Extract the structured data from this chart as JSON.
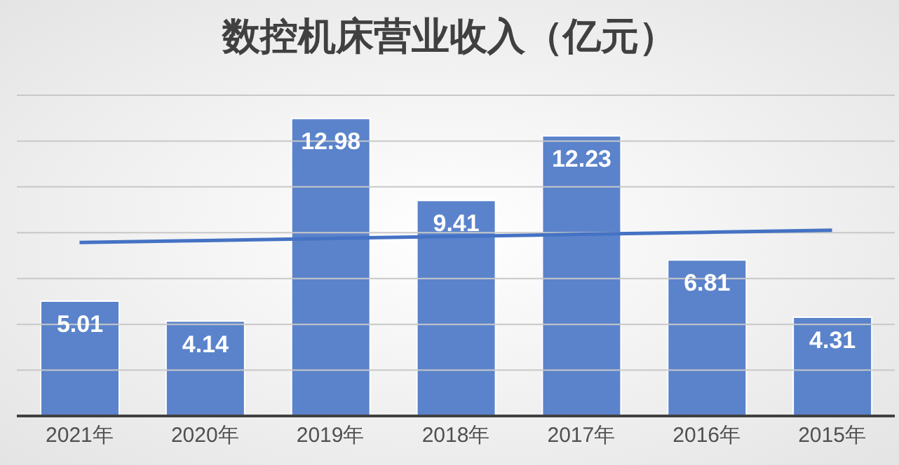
{
  "chart_data": {
    "type": "bar",
    "title": "数控机床营业收入（亿元）",
    "categories": [
      "2021年",
      "2020年",
      "2019年",
      "2018年",
      "2017年",
      "2016年",
      "2015年"
    ],
    "series": [
      {
        "color": "#5b83cb",
        "values": [
          5.01,
          4.14,
          12.98,
          9.41,
          12.23,
          6.81,
          4.31
        ],
        "value_labels": [
          "5.01",
          "4.14",
          "12.98",
          "9.41",
          "12.23",
          "6.81",
          "4.31"
        ]
      },
      {
        "type": "line",
        "color": "#4472c4",
        "values": [
          7.57,
          7.66,
          7.75,
          7.84,
          7.93,
          8.02,
          8.11
        ]
      }
    ],
    "ylim": [
      0,
      14
    ],
    "yticks": [
      {
        "value": 0,
        "label": null
      },
      {
        "value": 2,
        "label": null
      },
      {
        "value": 4,
        "label": null
      },
      {
        "value": 6,
        "label": null
      },
      {
        "value": 8,
        "label": null
      },
      {
        "value": 10,
        "label": null
      },
      {
        "value": 12,
        "label": null
      },
      {
        "value": 14,
        "label": null
      }
    ],
    "tick_labels": "x",
    "grid": "y"
  }
}
